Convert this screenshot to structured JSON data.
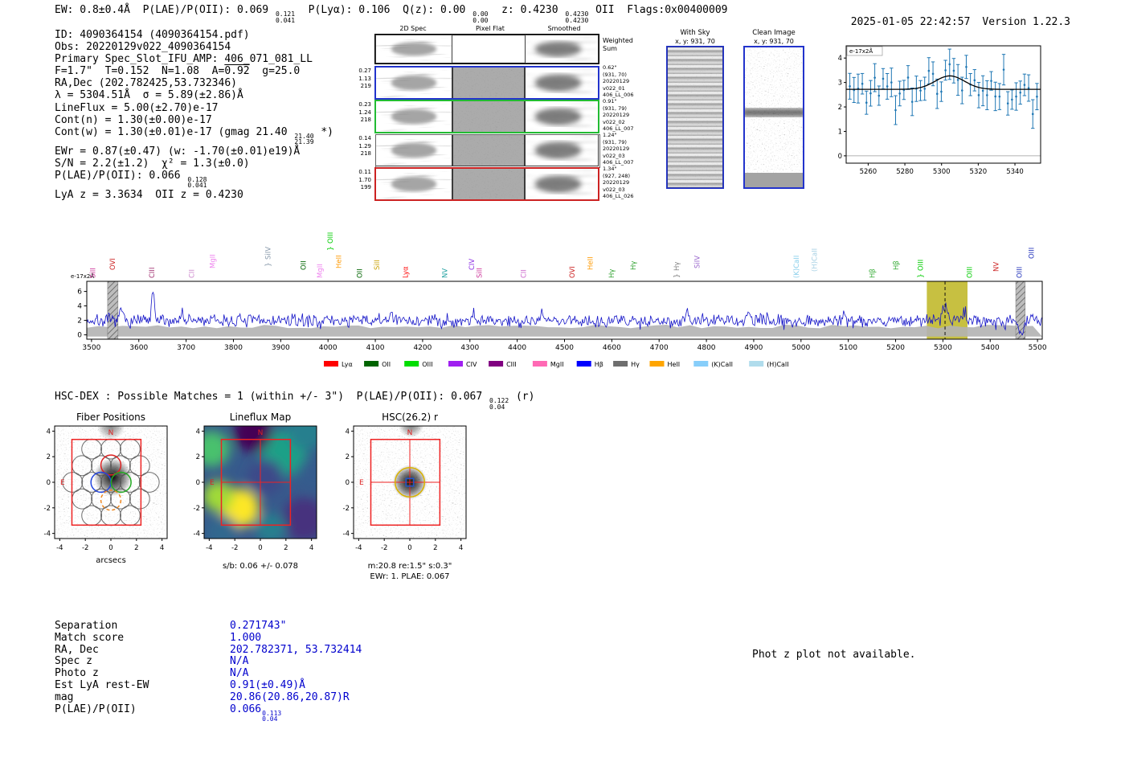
{
  "meta": {
    "timestamp": "2025-01-05 22:42:57",
    "version": "Version 1.22.3"
  },
  "header": {
    "segments": [
      {
        "t": "EW: 0.8±0.4Å  P(LAE)/P(OII): 0.069 "
      },
      {
        "f": [
          "0.121",
          "0.041"
        ]
      },
      {
        "t": "  P(Lyα): 0.106  Q(z): 0.00 "
      },
      {
        "f": [
          "0.00",
          "0.00"
        ]
      },
      {
        "t": "  z: 0.4230 "
      },
      {
        "f": [
          "0.4230",
          "0.4230"
        ]
      },
      {
        "t": " OII  Flags:0x00400009"
      }
    ]
  },
  "info_lines": [
    {
      "segments": [
        {
          "t": "ID: 4090364154 (4090364154.pdf)"
        }
      ]
    },
    {
      "segments": [
        {
          "t": "Obs: 20220129v022_4090364154"
        }
      ]
    },
    {
      "segments": [
        {
          "t": "Primary Spec_Slot_IFU_AMP: 406_071_081_LL"
        }
      ]
    },
    {
      "segments": [
        {
          "t": "F=1.7\"  T=0.152  N=1.08  A="
        },
        {
          "t": "0.92",
          "ov": true
        },
        {
          "t": "  g=25.0"
        }
      ]
    },
    {
      "segments": [
        {
          "t": "RA,Dec (202.782425,53.732346)"
        }
      ]
    },
    {
      "segments": [
        {
          "t": "λ = 5304.51Å  σ = 5.89(±2.86)Å"
        }
      ]
    },
    {
      "segments": [
        {
          "t": "LineFlux = 5.00(±2.70)e-17"
        }
      ]
    },
    {
      "segments": [
        {
          "t": "Cont(n) = 1.30(±0.00)e-17"
        }
      ]
    },
    {
      "segments": [
        {
          "t": "Cont(w) = 1.30(±0.01)e-17 (gmag 21.40 "
        },
        {
          "f": [
            "21.40",
            "21.39"
          ]
        },
        {
          "t": " *)"
        }
      ]
    },
    {
      "segments": [
        {
          "t": "EWr = 0.87(±0.47) (w: -1.70(±0.01)e19)Å"
        }
      ]
    },
    {
      "segments": [
        {
          "t": "S/N = 2.2(±1.2)  χ² = 1.3(±0.0)"
        }
      ]
    },
    {
      "segments": [
        {
          "t": "P(LAE)/P(OII): 0.066 "
        },
        {
          "f": [
            "0.128",
            "0.041"
          ]
        }
      ]
    },
    {
      "segments": [
        {
          "t": "LyA z = 3.3634  OII z = 0.4230"
        }
      ]
    }
  ],
  "spec2d": {
    "columns": [
      "2D Spec",
      "Pixel Flat",
      "Smoothed"
    ],
    "weighted_label": [
      "Weighted",
      "Sum"
    ],
    "rows": [
      {
        "left": [
          "0.27",
          "1.13",
          "219"
        ],
        "border": "#2233cc",
        "right": [
          "0.62\"",
          "(931, 70)",
          "20220129",
          "v022_01",
          "406_LL_006"
        ]
      },
      {
        "left": [
          "0.23",
          "1.24",
          "218"
        ],
        "border": "#22bb33",
        "right": [
          "0.91\"",
          "(931, 79)",
          "20220129",
          "v022_02",
          "406_LL_007"
        ]
      },
      {
        "left": [
          "0.14",
          "1.29",
          "218"
        ],
        "border": "none",
        "right": [
          "1.24\"",
          "(931, 79)",
          "20220129",
          "v022_03",
          "406_LL_007"
        ]
      },
      {
        "left": [
          "0.11",
          "1.70",
          "199"
        ],
        "border": "#cc2222",
        "right": [
          "1.34\"",
          "(927, 248)",
          "20220129",
          "v022_03",
          "406_LL_026"
        ]
      }
    ]
  },
  "withsky": {
    "title": "With Sky",
    "coords": "x, y: 931, 70"
  },
  "clean": {
    "title": "Clean Image",
    "coords": "x, y: 931, 70"
  },
  "hsc_line": {
    "segments": [
      {
        "t": "HSC-DEX : Possible Matches = 1 (within +/- 3\")  P(LAE)/P(OII): 0.067 "
      },
      {
        "f": [
          "0.122",
          "0.04"
        ]
      },
      {
        "t": " (r)"
      }
    ]
  },
  "cutouts": {
    "fiber": {
      "title": "Fiber Positions",
      "xlabel": "arcsecs",
      "n_label": "N",
      "e_label": "E",
      "ticks": [
        -4,
        -2,
        0,
        2,
        4
      ]
    },
    "lineflux": {
      "title": "Lineflux Map",
      "caption": "s/b: 0.06 +/- 0.078",
      "n_label": "N",
      "e_label": "E",
      "ticks": [
        -4,
        -2,
        0,
        2,
        4
      ]
    },
    "hsc": {
      "title": "HSC(26.2) r",
      "caption1": "m:20.8 re:1.5\" s:0.3\"",
      "caption2": "EWr: 1. PLAE: 0.067",
      "n_label": "N",
      "e_label": "E",
      "ticks": [
        -4,
        -2,
        0,
        2,
        4
      ]
    }
  },
  "match_table": {
    "rows": [
      {
        "label": "Separation",
        "value": "0.271743\""
      },
      {
        "label": "Match score",
        "value": "1.000"
      },
      {
        "label": "RA, Dec",
        "value": "202.782371, 53.732414"
      },
      {
        "label": "Spec z",
        "value": "N/A"
      },
      {
        "label": "Photo z",
        "value": "N/A"
      },
      {
        "label": "Est LyA rest-EW",
        "value": "0.91(±0.49)Å"
      },
      {
        "label": "mag",
        "value": "20.86(20.86,20.87)R"
      },
      {
        "label": "P(LAE)/P(OII)",
        "value": "0.066",
        "frac": [
          "0.113",
          "0.04"
        ]
      }
    ]
  },
  "photz_note": "Phot z plot not available.",
  "chart_data": [
    {
      "type": "scatter",
      "name": "emission-line-fit-zoom",
      "unit_label": "e-17x2Å",
      "x_range": [
        5248,
        5354
      ],
      "x_ticks": [
        5260,
        5280,
        5300,
        5320,
        5340
      ],
      "y_range": [
        -0.3,
        4.5
      ],
      "y_ticks": [
        0,
        1,
        2,
        3,
        4
      ],
      "fit": {
        "center": 5304.51,
        "sigma": 5.89,
        "draw_sigma": 8,
        "amplitude": 0.55,
        "continuum": 2.72
      },
      "points": {
        "count": 46,
        "noise_sigma": 0.42,
        "err_base": 0.38,
        "err_spread": 0.25,
        "seed": 11
      },
      "colors": {
        "points": "#1f77b4",
        "fit": "#000000"
      }
    },
    {
      "type": "line",
      "name": "full-spectrum",
      "unit_label": "e-17x2Å",
      "x_range": [
        3490,
        5510
      ],
      "x_ticks": [
        3500,
        3600,
        3700,
        3800,
        3900,
        4000,
        4100,
        4200,
        4300,
        4400,
        4500,
        4600,
        4700,
        4800,
        4900,
        5000,
        5100,
        5200,
        5300,
        5400,
        5500
      ],
      "y_range": [
        -0.6,
        7.4
      ],
      "y_ticks": [
        0,
        2,
        4,
        6
      ],
      "line_color": "#1515c8",
      "emission": {
        "x": 5304.51,
        "a": 2.2,
        "s": 5
      },
      "noise": {
        "base": 1.95,
        "sigma": 0.45,
        "seed": 7,
        "spikes": [
          {
            "x": 3563,
            "a": 1.8,
            "s": 2.5
          },
          {
            "x": 3630,
            "a": 4.2,
            "s": 2.5
          },
          {
            "x": 3690,
            "a": 1.3,
            "s": 3
          },
          {
            "x": 4133,
            "a": 1.5,
            "s": 2.5
          },
          {
            "x": 4308,
            "a": 1.2,
            "s": 3
          },
          {
            "x": 4451,
            "a": 1.4,
            "s": 3
          },
          {
            "x": 4760,
            "a": 1.2,
            "s": 3
          },
          {
            "x": 4890,
            "a": 1.1,
            "s": 3
          },
          {
            "x": 5090,
            "a": 1.2,
            "s": 3
          },
          {
            "x": 5345,
            "a": 1.3,
            "s": 4
          },
          {
            "x": 5465,
            "a": -1.5,
            "s": 6
          }
        ]
      },
      "error_band": {
        "top": 1.15,
        "jitter": 0.5,
        "color": "#b2b2b2"
      },
      "highlight_band": {
        "x0": 5266,
        "x1": 5352,
        "color": "#bdb520"
      },
      "masked_bands": [
        {
          "x0": 3534,
          "x1": 3556
        },
        {
          "x0": 5454,
          "x1": 5474
        }
      ],
      "marker_line": {
        "x": 5304.51,
        "style": "dashed"
      },
      "line_labels": [
        {
          "x": 3503,
          "text": "SiII",
          "color": "#cc3399",
          "raise": 0
        },
        {
          "x": 3544,
          "text": "OVI",
          "color": "#cc2222",
          "raise": 10
        },
        {
          "x": 3628,
          "text": "CIII",
          "color": "#a03070",
          "raise": 0
        },
        {
          "x": 3712,
          "text": "CII",
          "color": "#cc88cc",
          "raise": 0
        },
        {
          "x": 3756,
          "text": "MgII",
          "color": "#ee82ee",
          "raise": 12
        },
        {
          "x": 3873,
          "text": "SiIV",
          "color": "#8899aa",
          "raise": 14,
          "brace": true
        },
        {
          "x": 3948,
          "text": "OII",
          "color": "#006400",
          "raise": 10
        },
        {
          "x": 3983,
          "text": "MgII",
          "color": "#ee82ee",
          "raise": 0
        },
        {
          "x": 4005,
          "text": "OIII",
          "color": "#00cc00",
          "raise": 34,
          "brace": true
        },
        {
          "x": 4023,
          "text": "HeII",
          "color": "#ff9900",
          "raise": 12
        },
        {
          "x": 4067,
          "text": "OII",
          "color": "#006400",
          "raise": 0
        },
        {
          "x": 4103,
          "text": "SiII",
          "color": "#c8a000",
          "raise": 10
        },
        {
          "x": 4164,
          "text": "Lyα",
          "color": "#ff0000",
          "raise": 0
        },
        {
          "x": 4247,
          "text": "NV",
          "color": "#20a0a0",
          "raise": 0
        },
        {
          "x": 4304,
          "text": "CIV",
          "color": "#8a2be2",
          "raise": 10
        },
        {
          "x": 4320,
          "text": "SiII",
          "color": "#cc3399",
          "raise": 0
        },
        {
          "x": 4413,
          "text": "CII",
          "color": "#cc66cc",
          "raise": 0
        },
        {
          "x": 4516,
          "text": "OVI",
          "color": "#cc2222",
          "raise": 0
        },
        {
          "x": 4554,
          "text": "HeII",
          "color": "#ff9900",
          "raise": 10
        },
        {
          "x": 4599,
          "text": "Hγ",
          "color": "#2ca02c",
          "raise": 0
        },
        {
          "x": 4645,
          "text": "Hγ",
          "color": "#2ca02c",
          "raise": 10
        },
        {
          "x": 4737,
          "text": "Hγ",
          "color": "#7f7f7f",
          "raise": 0,
          "brace": true
        },
        {
          "x": 4780,
          "text": "SiIV",
          "color": "#9966cc",
          "raise": 12
        },
        {
          "x": 4990,
          "text": "(K)CaII",
          "color": "#87ceeb",
          "raise": 0
        },
        {
          "x": 5028,
          "text": "(H)CaII",
          "color": "#a4cfe3",
          "raise": 8
        },
        {
          "x": 5151,
          "text": "Hβ",
          "color": "#33aa33",
          "raise": 0
        },
        {
          "x": 5201,
          "text": "Hβ",
          "color": "#33aa33",
          "raise": 10
        },
        {
          "x": 5253,
          "text": "OIII",
          "color": "#00cc00",
          "raise": 0,
          "brace": true
        },
        {
          "x": 5356,
          "text": "OIII",
          "color": "#00cc00",
          "raise": 0
        },
        {
          "x": 5412,
          "text": "NV",
          "color": "#cc2222",
          "raise": 8
        },
        {
          "x": 5462,
          "text": "OIII",
          "color": "#2233bb",
          "raise": 0
        },
        {
          "x": 5487,
          "text": "OIII",
          "color": "#2233bb",
          "raise": 24
        }
      ],
      "legend": [
        {
          "label": "Lyα",
          "color": "#ff0000"
        },
        {
          "label": "OII",
          "color": "#006400"
        },
        {
          "label": "OIII",
          "color": "#00dd00"
        },
        {
          "label": "CIV",
          "color": "#a020f0"
        },
        {
          "label": "CIII",
          "color": "#800080"
        },
        {
          "label": "MgII",
          "color": "#ff69b4"
        },
        {
          "label": "Hβ",
          "color": "#0000ff"
        },
        {
          "label": "Hγ",
          "color": "#6e6e6e"
        },
        {
          "label": "HeII",
          "color": "#ffa500"
        },
        {
          "label": "(K)CaII",
          "color": "#87cefa"
        },
        {
          "label": "(H)CaII",
          "color": "#b0dcec"
        }
      ]
    }
  ]
}
